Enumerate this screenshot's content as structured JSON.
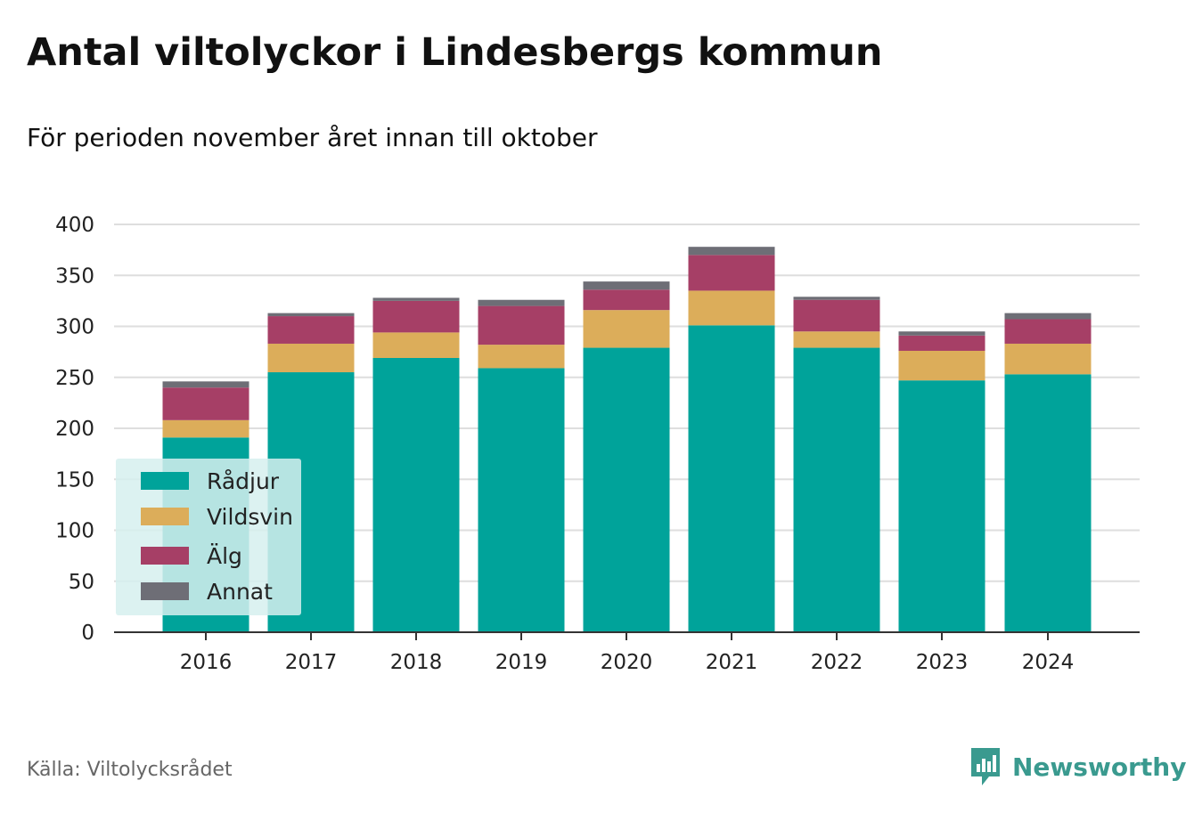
{
  "title": "Antal viltolyckor i Lindesbergs kommun",
  "subtitle": "För perioden november året innan till oktober",
  "source": "Källa: Viltolycksrådet",
  "brand": {
    "name": "Newsworthy",
    "logo_icon": "newsworthy-bar-chart-icon",
    "color": "#3a9a8f"
  },
  "chart_data": {
    "type": "bar",
    "stacked": true,
    "categories": [
      "2016",
      "2017",
      "2018",
      "2019",
      "2020",
      "2021",
      "2022",
      "2023",
      "2024"
    ],
    "series": [
      {
        "name": "Rådjur",
        "color": "#00a39a",
        "values": [
          191,
          255,
          269,
          259,
          279,
          301,
          279,
          247,
          253
        ]
      },
      {
        "name": "Vildsvin",
        "color": "#dcad5a",
        "values": [
          17,
          28,
          25,
          23,
          37,
          34,
          16,
          29,
          30
        ]
      },
      {
        "name": "Älg",
        "color": "#a63f66",
        "values": [
          32,
          27,
          31,
          38,
          20,
          35,
          31,
          15,
          24
        ]
      },
      {
        "name": "Annat",
        "color": "#6e6e76",
        "values": [
          6,
          3,
          3,
          6,
          8,
          8,
          3,
          4,
          6
        ]
      }
    ],
    "yticks": [
      0,
      50,
      100,
      150,
      200,
      250,
      300,
      350,
      400
    ],
    "ylim": [
      0,
      400
    ],
    "grid": true,
    "legend_position": "bottom-left",
    "xlabel": "",
    "ylabel": ""
  }
}
